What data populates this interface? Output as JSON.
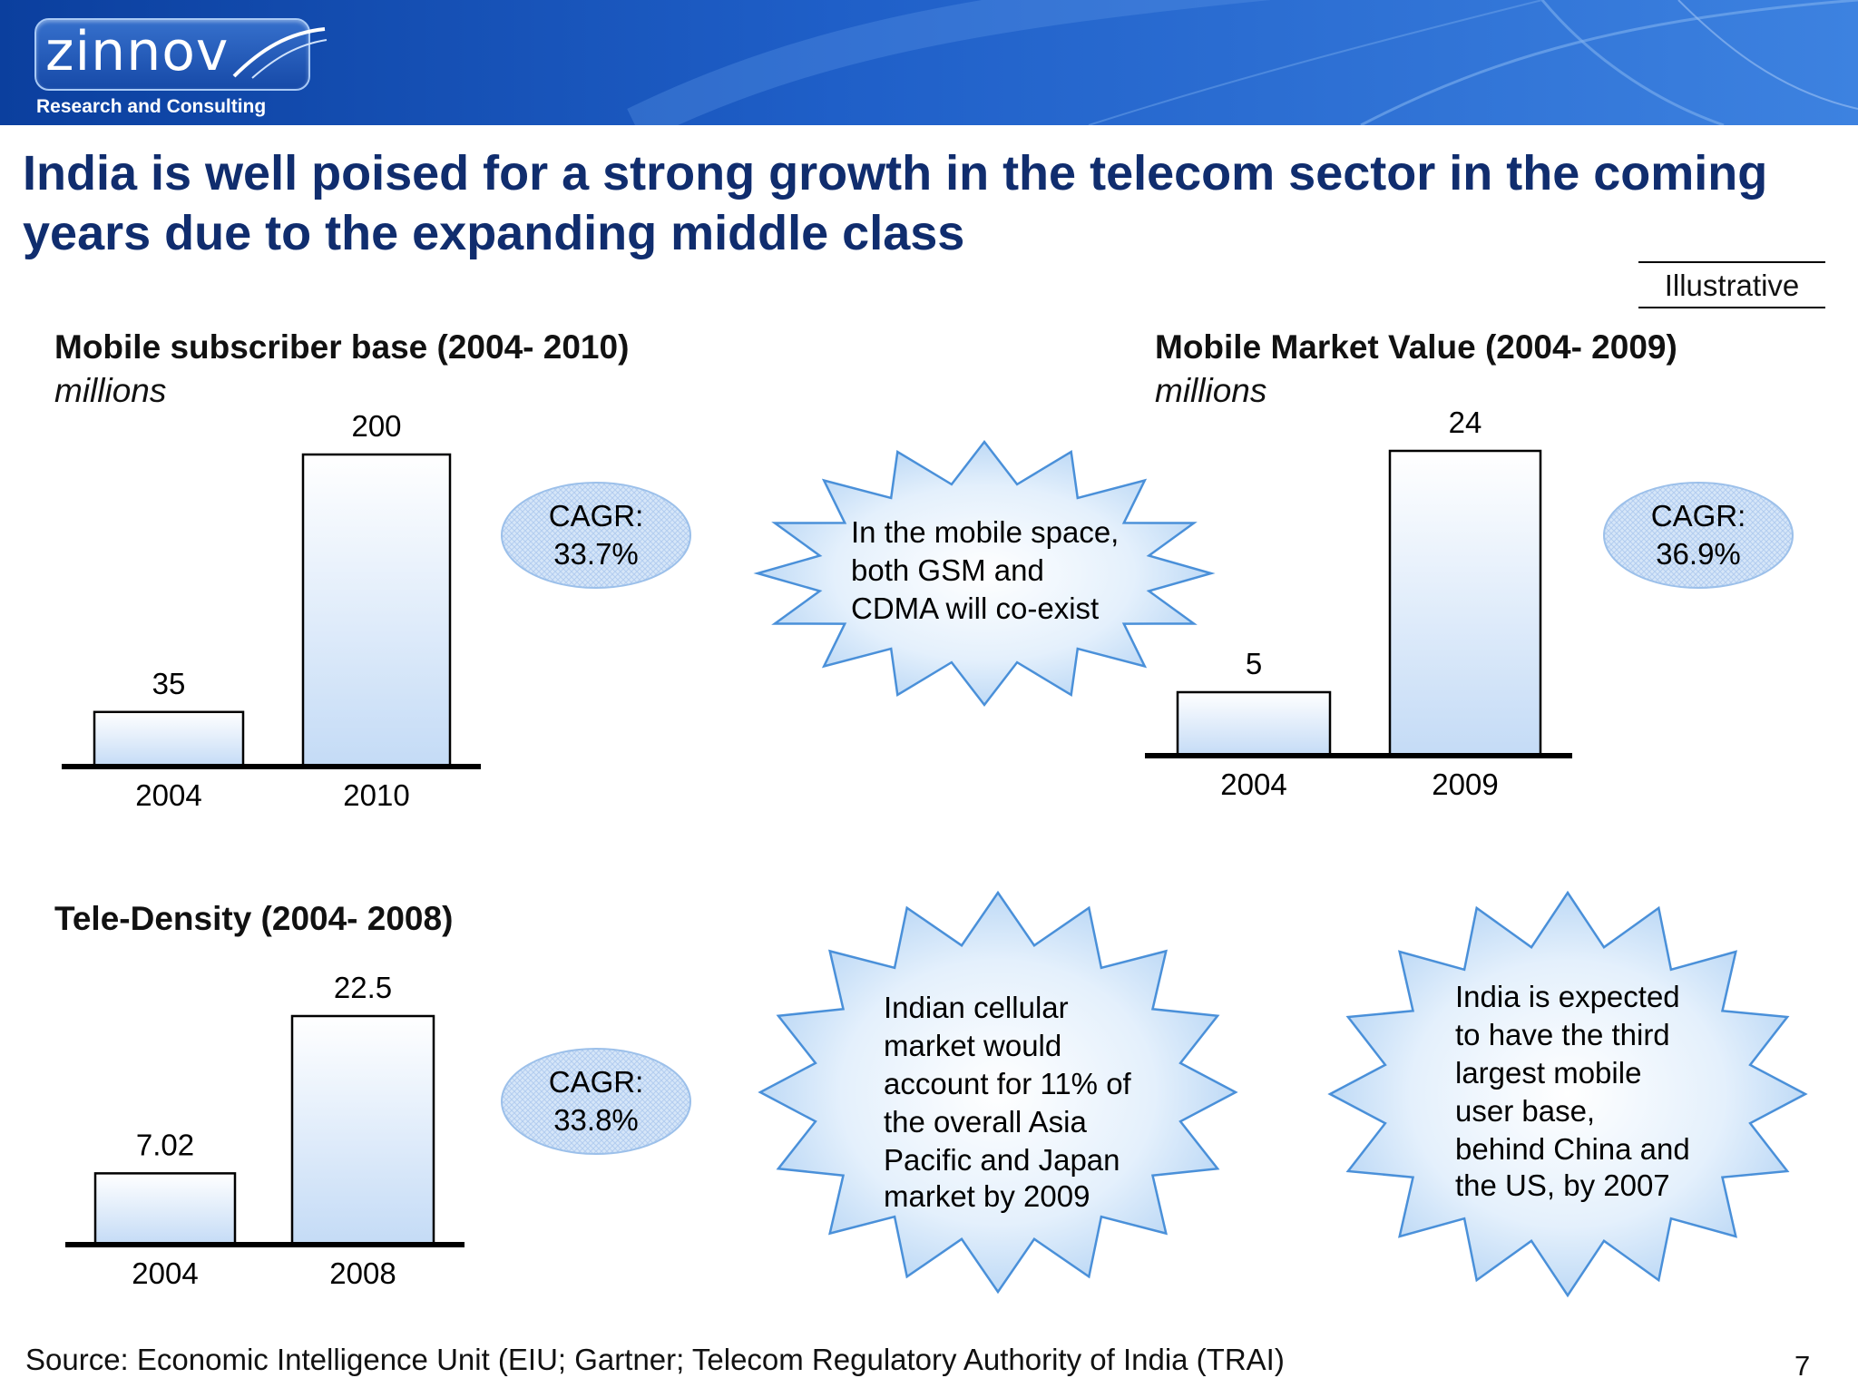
{
  "header": {
    "logo_text": "zinnov",
    "logo_tagline": "Research and Consulting",
    "colors": {
      "banner": "#1f5fc8",
      "title": "#102d6e",
      "bar_fill_light": "#ffffff",
      "bar_fill_dark": "#c4dbf6",
      "bubble": "#cfe0f5"
    }
  },
  "title": "India is well poised for a strong growth in the telecom sector in the coming years due to the expanding middle class",
  "illustrative_label": "Illustrative",
  "cagr_badges": [
    {
      "label": "CAGR:",
      "value": "33.7%"
    },
    {
      "label": "CAGR:",
      "value": "36.9%"
    },
    {
      "label": "CAGR:",
      "value": "33.8%"
    }
  ],
  "callouts": [
    {
      "lines": [
        "In the mobile space,",
        "both GSM and",
        "CDMA will co-exist"
      ]
    },
    {
      "lines": [
        "Indian cellular",
        "market would",
        "account for 11% of",
        "the overall Asia",
        "Pacific and Japan",
        "market by 2009"
      ]
    },
    {
      "lines": [
        "India is expected",
        "to have the third",
        "largest mobile",
        "user base,",
        "behind China and",
        "the US, by 2007"
      ]
    }
  ],
  "chart_data": [
    {
      "type": "bar",
      "title": "Mobile subscriber base (2004- 2010)",
      "subtitle": "millions",
      "categories": [
        "2004",
        "2010"
      ],
      "values": [
        35,
        200
      ],
      "value_labels": [
        "35",
        "200"
      ],
      "ylim": [
        0,
        200
      ],
      "grid": false
    },
    {
      "type": "bar",
      "title": "Mobile Market Value (2004- 2009)",
      "subtitle": "millions",
      "categories": [
        "2004",
        "2009"
      ],
      "values": [
        5,
        24
      ],
      "value_labels": [
        "5",
        "24"
      ],
      "ylim": [
        0,
        24
      ],
      "grid": false
    },
    {
      "type": "bar",
      "title": "Tele-Density (2004- 2008)",
      "subtitle": "",
      "categories": [
        "2004",
        "2008"
      ],
      "values": [
        7.02,
        22.5
      ],
      "value_labels": [
        "7.02",
        "22.5"
      ],
      "ylim": [
        0,
        22.5
      ],
      "grid": false
    }
  ],
  "footer": {
    "source": "Source:  Economic Intelligence Unit (EIU; Gartner; Telecom Regulatory Authority of India (TRAI)",
    "page_number": "7"
  }
}
